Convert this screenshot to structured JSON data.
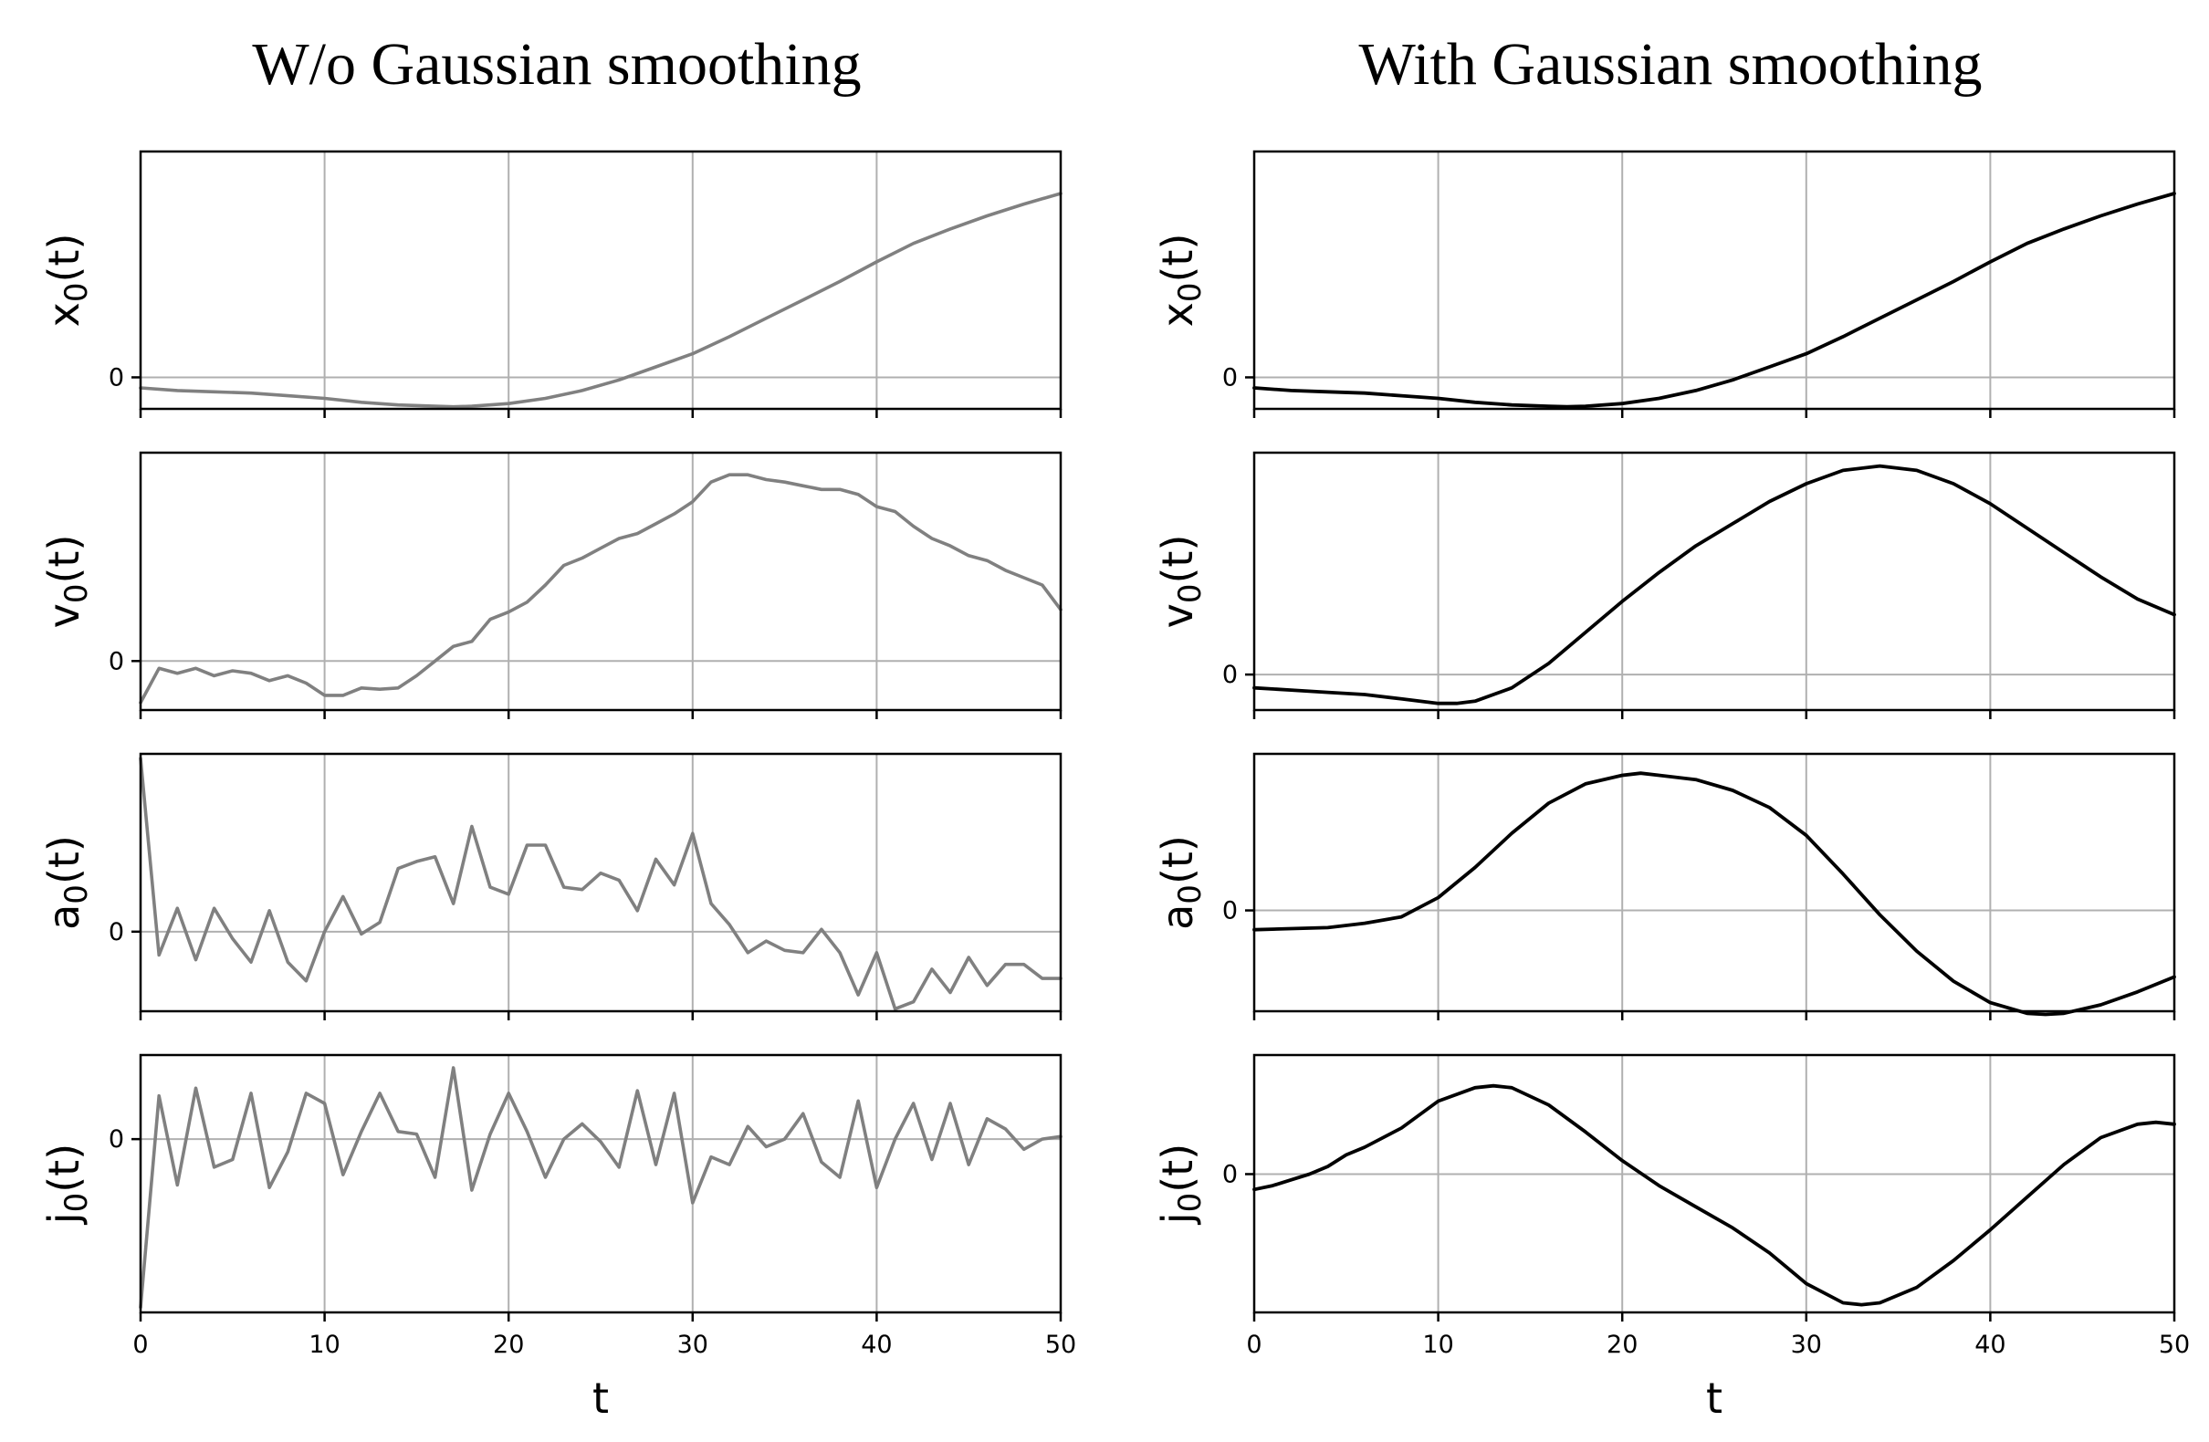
{
  "chart_data": [
    {
      "type": "line",
      "column_title": "W/o Gaussian smoothing",
      "series_color": "#808080",
      "xlabel": "t",
      "xlim": [
        0,
        50
      ],
      "xticks": [
        0,
        10,
        20,
        30,
        40,
        50
      ],
      "panels": [
        {
          "ylabel_base": "x",
          "ylabel_sub": "0",
          "ylabel_arg": "(t)",
          "yticks": [
            0
          ],
          "ylim": [
            -0.12,
            0.86
          ],
          "x": [
            0,
            2,
            4,
            6,
            8,
            10,
            12,
            14,
            16,
            17,
            18,
            20,
            22,
            24,
            26,
            28,
            30,
            32,
            34,
            36,
            38,
            40,
            42,
            44,
            46,
            48,
            50
          ],
          "y": [
            -0.04,
            -0.05,
            -0.055,
            -0.06,
            -0.07,
            -0.08,
            -0.095,
            -0.105,
            -0.11,
            -0.112,
            -0.11,
            -0.1,
            -0.08,
            -0.05,
            -0.01,
            0.04,
            0.09,
            0.155,
            0.225,
            0.295,
            0.365,
            0.44,
            0.51,
            0.565,
            0.615,
            0.66,
            0.7
          ]
        },
        {
          "ylabel_base": "v",
          "ylabel_sub": "0",
          "ylabel_arg": "(t)",
          "yticks": [
            0
          ],
          "ylim": [
            -0.2,
            0.85
          ],
          "x": [
            0,
            1,
            2,
            3,
            4,
            5,
            6,
            7,
            8,
            9,
            10,
            11,
            12,
            13,
            14,
            15,
            16,
            17,
            18,
            19,
            20,
            21,
            22,
            23,
            24,
            25,
            26,
            27,
            28,
            29,
            30,
            31,
            32,
            33,
            34,
            35,
            36,
            37,
            38,
            39,
            40,
            41,
            42,
            43,
            44,
            45,
            46,
            47,
            48,
            49,
            50
          ],
          "y": [
            -0.17,
            -0.03,
            -0.05,
            -0.03,
            -0.06,
            -0.04,
            -0.05,
            -0.08,
            -0.06,
            -0.09,
            -0.14,
            -0.14,
            -0.11,
            -0.115,
            -0.11,
            -0.06,
            0.0,
            0.06,
            0.08,
            0.17,
            0.2,
            0.24,
            0.31,
            0.39,
            0.42,
            0.46,
            0.5,
            0.52,
            0.56,
            0.6,
            0.65,
            0.73,
            0.76,
            0.76,
            0.74,
            0.73,
            0.715,
            0.7,
            0.7,
            0.68,
            0.63,
            0.61,
            0.55,
            0.5,
            0.47,
            0.43,
            0.41,
            0.37,
            0.34,
            0.31,
            0.21
          ]
        },
        {
          "ylabel_base": "a",
          "ylabel_sub": "0",
          "ylabel_arg": "(t)",
          "yticks": [
            0
          ],
          "ylim": [
            -0.34,
            0.76
          ],
          "x": [
            0,
            1,
            2,
            3,
            4,
            5,
            6,
            7,
            8,
            9,
            10,
            11,
            12,
            13,
            14,
            15,
            16,
            17,
            18,
            19,
            20,
            21,
            22,
            23,
            24,
            25,
            26,
            27,
            28,
            29,
            30,
            31,
            32,
            33,
            34,
            35,
            36,
            37,
            38,
            39,
            40,
            41,
            42,
            43,
            44,
            45,
            46,
            47,
            48,
            49,
            50
          ],
          "y": [
            0.74,
            -0.1,
            0.1,
            -0.12,
            0.1,
            -0.03,
            -0.13,
            0.09,
            -0.13,
            -0.21,
            0.0,
            0.15,
            -0.01,
            0.04,
            0.27,
            0.3,
            0.32,
            0.12,
            0.45,
            0.19,
            0.16,
            0.37,
            0.37,
            0.19,
            0.18,
            0.25,
            0.22,
            0.09,
            0.31,
            0.2,
            0.42,
            0.12,
            0.03,
            -0.09,
            -0.04,
            -0.08,
            -0.09,
            0.01,
            -0.09,
            -0.27,
            -0.09,
            -0.33,
            -0.3,
            -0.16,
            -0.26,
            -0.11,
            -0.23,
            -0.14,
            -0.14,
            -0.2,
            -0.2
          ]
        },
        {
          "ylabel_base": "j",
          "ylabel_sub": "0",
          "ylabel_arg": "(t)",
          "yticks": [
            0
          ],
          "ylim": [
            -0.68,
            0.33
          ],
          "x": [
            0,
            1,
            2,
            3,
            4,
            5,
            6,
            7,
            8,
            9,
            10,
            11,
            12,
            13,
            14,
            15,
            16,
            17,
            18,
            19,
            20,
            21,
            22,
            23,
            24,
            25,
            26,
            27,
            28,
            29,
            30,
            31,
            32,
            33,
            34,
            35,
            36,
            37,
            38,
            39,
            40,
            41,
            42,
            43,
            44,
            45,
            46,
            47,
            48,
            49,
            50
          ],
          "y": [
            -0.66,
            0.17,
            -0.18,
            0.2,
            -0.11,
            -0.08,
            0.18,
            -0.19,
            -0.05,
            0.18,
            0.14,
            -0.14,
            0.03,
            0.18,
            0.03,
            0.02,
            -0.15,
            0.28,
            -0.2,
            0.02,
            0.18,
            0.03,
            -0.15,
            0.0,
            0.06,
            -0.01,
            -0.11,
            0.19,
            -0.1,
            0.18,
            -0.25,
            -0.07,
            -0.1,
            0.05,
            -0.03,
            0.0,
            0.1,
            -0.09,
            -0.15,
            0.15,
            -0.19,
            0.0,
            0.14,
            -0.08,
            0.14,
            -0.1,
            0.08,
            0.04,
            -0.04,
            0.0,
            0.01
          ]
        }
      ]
    },
    {
      "type": "line",
      "column_title": "With Gaussian smoothing",
      "series_color": "#000000",
      "xlabel": "t",
      "xlim": [
        0,
        50
      ],
      "xticks": [
        0,
        10,
        20,
        30,
        40,
        50
      ],
      "panels": [
        {
          "ylabel_base": "x",
          "ylabel_sub": "0",
          "ylabel_arg": "(t)",
          "yticks": [
            0
          ],
          "ylim": [
            -0.12,
            0.86
          ],
          "x": [
            0,
            2,
            4,
            6,
            8,
            10,
            12,
            14,
            16,
            17,
            18,
            20,
            22,
            24,
            26,
            28,
            30,
            32,
            34,
            36,
            38,
            40,
            42,
            44,
            46,
            48,
            50
          ],
          "y": [
            -0.04,
            -0.05,
            -0.055,
            -0.06,
            -0.07,
            -0.08,
            -0.095,
            -0.105,
            -0.11,
            -0.112,
            -0.11,
            -0.1,
            -0.08,
            -0.05,
            -0.01,
            0.04,
            0.09,
            0.155,
            0.225,
            0.295,
            0.365,
            0.44,
            0.51,
            0.565,
            0.615,
            0.66,
            0.7
          ]
        },
        {
          "ylabel_base": "v",
          "ylabel_sub": "0",
          "ylabel_arg": "(t)",
          "yticks": [
            0
          ],
          "ylim": [
            -0.16,
            1.0
          ],
          "x": [
            0,
            2,
            4,
            6,
            8,
            10,
            11,
            12,
            14,
            16,
            18,
            20,
            22,
            24,
            26,
            28,
            30,
            32,
            34,
            36,
            38,
            40,
            42,
            44,
            46,
            48,
            50
          ],
          "y": [
            -0.06,
            -0.07,
            -0.08,
            -0.09,
            -0.11,
            -0.13,
            -0.13,
            -0.12,
            -0.06,
            0.05,
            0.19,
            0.33,
            0.46,
            0.58,
            0.68,
            0.78,
            0.86,
            0.92,
            0.94,
            0.92,
            0.86,
            0.77,
            0.66,
            0.55,
            0.44,
            0.34,
            0.27
          ]
        },
        {
          "ylabel_base": "a",
          "ylabel_sub": "0",
          "ylabel_arg": "(t)",
          "yticks": [
            0
          ],
          "ylim": [
            -0.47,
            0.73
          ],
          "x": [
            0,
            2,
            4,
            5,
            6,
            8,
            10,
            12,
            14,
            16,
            18,
            20,
            21,
            22,
            24,
            26,
            28,
            30,
            32,
            34,
            36,
            38,
            40,
            42,
            43,
            44,
            46,
            48,
            50
          ],
          "y": [
            -0.09,
            -0.085,
            -0.08,
            -0.07,
            -0.06,
            -0.03,
            0.06,
            0.2,
            0.36,
            0.5,
            0.59,
            0.63,
            0.64,
            0.63,
            0.61,
            0.56,
            0.48,
            0.35,
            0.17,
            -0.02,
            -0.19,
            -0.33,
            -0.43,
            -0.48,
            -0.485,
            -0.48,
            -0.44,
            -0.38,
            -0.31
          ]
        },
        {
          "ylabel_base": "j",
          "ylabel_sub": "0",
          "ylabel_arg": "(t)",
          "yticks": [
            0
          ],
          "ylim": [
            -0.72,
            0.62
          ],
          "x": [
            0,
            1,
            2,
            3,
            4,
            5,
            6,
            8,
            10,
            12,
            13,
            14,
            16,
            18,
            20,
            22,
            24,
            26,
            28,
            30,
            32,
            33,
            34,
            36,
            38,
            40,
            42,
            44,
            46,
            48,
            49,
            50
          ],
          "y": [
            -0.08,
            -0.06,
            -0.03,
            0.0,
            0.04,
            0.1,
            0.14,
            0.24,
            0.38,
            0.45,
            0.46,
            0.45,
            0.36,
            0.22,
            0.07,
            -0.06,
            -0.17,
            -0.28,
            -0.41,
            -0.57,
            -0.67,
            -0.68,
            -0.67,
            -0.59,
            -0.45,
            -0.29,
            -0.12,
            0.05,
            0.19,
            0.26,
            0.27,
            0.26
          ]
        }
      ]
    }
  ]
}
